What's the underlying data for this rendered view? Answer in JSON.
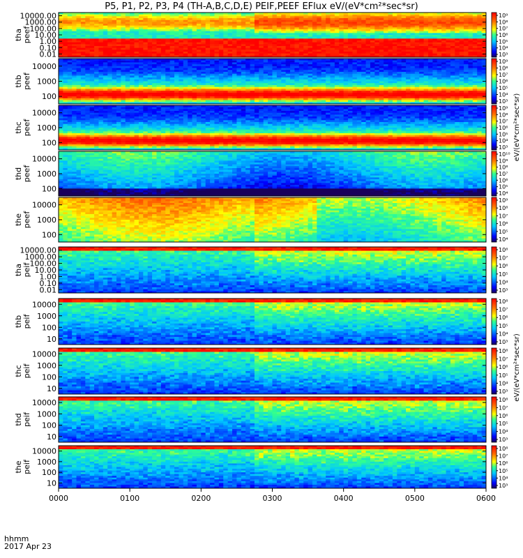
{
  "title": "P5, P1, P2, P3, P4 (TH-A,B,C,D,E) PEIF,PEEF EFlux eV/(eV*cm²*sec*sr)",
  "footer": {
    "time_unit": "hhmm",
    "date": "2017 Apr 23"
  },
  "chart_data": {
    "type": "heatmap",
    "xlabel": "hhmm",
    "x_tick_labels": [
      "0000",
      "0100",
      "0200",
      "0300",
      "0400",
      "0500",
      "0600"
    ],
    "x_range_hours": [
      0,
      6
    ],
    "colorbar_unit": "eV/(eV*cm²*sec*sr)",
    "panels": [
      {
        "id": "tha-peef",
        "probe": "tha",
        "instrument": "peef",
        "ylabel": [
          "tha",
          "peef"
        ],
        "yticks": [
          "10000.00",
          "1000.00",
          "100.00",
          "10.00",
          "1.00",
          "0.10",
          "0.01"
        ],
        "colorbar_ticks": [
          "10⁹",
          "10⁸",
          "10⁷",
          "10⁶",
          "10⁵",
          "10⁴",
          "10³"
        ]
      },
      {
        "id": "thb-peef",
        "probe": "thb",
        "instrument": "peef",
        "ylabel": [
          "thb",
          "peef"
        ],
        "yticks": [
          "10000",
          "1000",
          "100"
        ],
        "colorbar_ticks": [
          "10⁹",
          "10⁸",
          "10⁷",
          "10⁶",
          "10⁵",
          "10⁴",
          "10³"
        ]
      },
      {
        "id": "thc-peef",
        "probe": "thc",
        "instrument": "peef",
        "ylabel": [
          "thc",
          "peef"
        ],
        "yticks": [
          "10000",
          "1000",
          "100"
        ],
        "colorbar_ticks": [
          "10⁹",
          "10⁸",
          "10⁷",
          "10⁶",
          "10⁵",
          "10⁴",
          "10³"
        ]
      },
      {
        "id": "thd-peef",
        "probe": "thd",
        "instrument": "peef",
        "ylabel": [
          "thd",
          "peef"
        ],
        "yticks": [
          "10000",
          "1000",
          "100"
        ],
        "colorbar_ticks": [
          "10¹⁰",
          "10⁹",
          "10⁸",
          "10⁷",
          "10⁶",
          "10⁵",
          "10⁴"
        ]
      },
      {
        "id": "the-peef",
        "probe": "the",
        "instrument": "peef",
        "ylabel": [
          "the",
          "peef"
        ],
        "yticks": [
          "10000",
          "1000",
          "100"
        ],
        "colorbar_ticks": [
          "10⁹",
          "10⁸",
          "10⁷",
          "10⁶",
          "10⁵",
          "10⁴"
        ]
      },
      {
        "id": "tha-peif",
        "probe": "tha",
        "instrument": "peif",
        "ylabel": [
          "tha",
          "peif"
        ],
        "yticks": [
          "10000.00",
          "1000.00",
          "100.00",
          "10.00",
          "1.00",
          "0.10",
          "0.01"
        ],
        "colorbar_ticks": [
          "10⁸",
          "10⁷",
          "10⁶",
          "10⁵",
          "10⁴",
          "10³"
        ]
      },
      {
        "id": "thb-peif",
        "probe": "thb",
        "instrument": "peif",
        "ylabel": [
          "thb",
          "peif"
        ],
        "yticks": [
          "10000",
          "1000",
          "100",
          "10"
        ],
        "colorbar_ticks": [
          "10⁸",
          "10⁷",
          "10⁶",
          "10⁵",
          "10⁴",
          "10³"
        ]
      },
      {
        "id": "thc-peif",
        "probe": "thc",
        "instrument": "peif",
        "ylabel": [
          "thc",
          "peif"
        ],
        "yticks": [
          "10000",
          "1000",
          "100",
          "10"
        ],
        "colorbar_ticks": [
          "10⁸",
          "10⁷",
          "10⁶",
          "10⁵",
          "10⁴",
          "10³"
        ]
      },
      {
        "id": "thd-peif",
        "probe": "thd",
        "instrument": "peif",
        "ylabel": [
          "thd",
          "peif"
        ],
        "yticks": [
          "10000",
          "1000",
          "100",
          "10"
        ],
        "colorbar_ticks": [
          "10⁸",
          "10⁷",
          "10⁶",
          "10⁵",
          "10⁴",
          "10³"
        ]
      },
      {
        "id": "the-peif",
        "probe": "the",
        "instrument": "peif",
        "ylabel": [
          "the",
          "peif"
        ],
        "yticks": [
          "10000",
          "1000",
          "100",
          "10"
        ],
        "colorbar_ticks": [
          "10⁸",
          "10⁷",
          "10⁶",
          "10⁵",
          "10⁴",
          "10³"
        ]
      }
    ]
  }
}
